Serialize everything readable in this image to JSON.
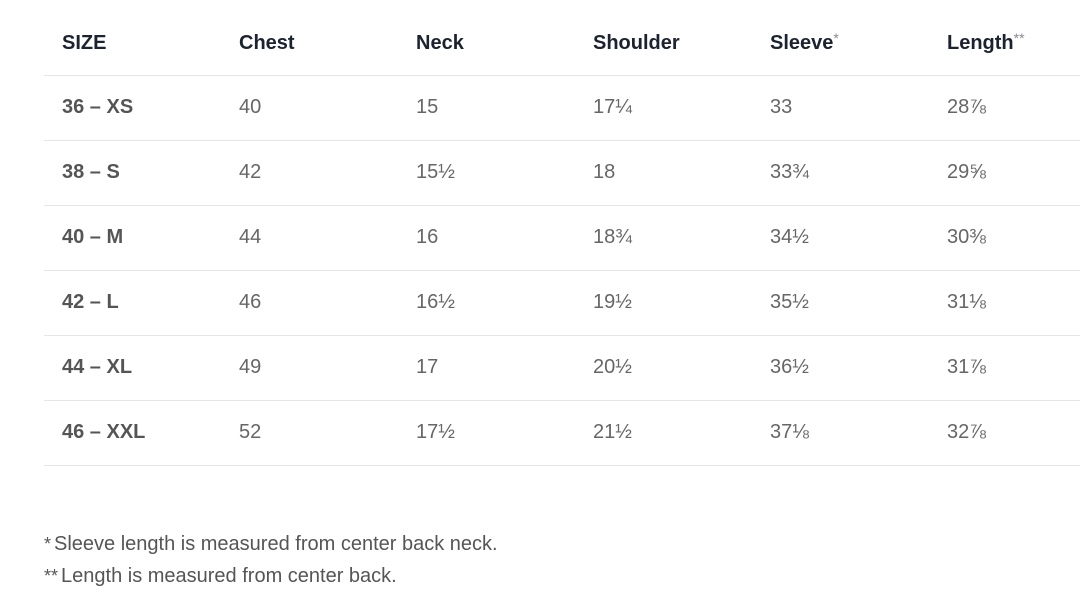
{
  "table": {
    "headers": [
      {
        "label": "SIZE",
        "marker": ""
      },
      {
        "label": "Chest",
        "marker": ""
      },
      {
        "label": "Neck",
        "marker": ""
      },
      {
        "label": "Shoulder",
        "marker": ""
      },
      {
        "label": "Sleeve",
        "marker": "*"
      },
      {
        "label": "Length",
        "marker": "**"
      }
    ],
    "rows": [
      {
        "size": "36 – XS",
        "chest": "40",
        "neck": "15",
        "shoulder": "17¼",
        "sleeve": "33",
        "length": "28⅞"
      },
      {
        "size": "38 – S",
        "chest": "42",
        "neck": "15½",
        "shoulder": "18",
        "sleeve": "33¾",
        "length": "29⅝"
      },
      {
        "size": "40 – M",
        "chest": "44",
        "neck": "16",
        "shoulder": "18¾",
        "sleeve": "34½",
        "length": "30⅜"
      },
      {
        "size": "42 – L",
        "chest": "46",
        "neck": "16½",
        "shoulder": "19½",
        "sleeve": "35½",
        "length": "31⅛"
      },
      {
        "size": "44 – XL",
        "chest": "49",
        "neck": "17",
        "shoulder": "20½",
        "sleeve": "36½",
        "length": "31⅞"
      },
      {
        "size": "46 – XXL",
        "chest": "52",
        "neck": "17½",
        "shoulder": "21½",
        "sleeve": "37⅛",
        "length": "32⅞"
      }
    ]
  },
  "notes": [
    {
      "marker": "*",
      "text": "Sleeve length is measured from center back neck."
    },
    {
      "marker": "**",
      "text": "Length is measured from center back."
    }
  ],
  "colors": {
    "header_text": "#1b2330",
    "body_text": "#666666",
    "divider": "#e6e6e6"
  }
}
